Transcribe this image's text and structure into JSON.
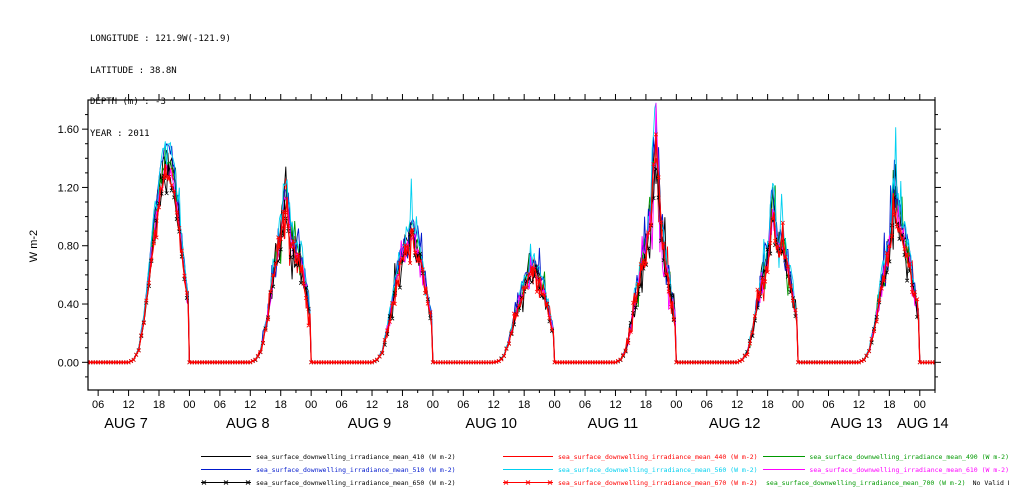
{
  "header": {
    "lines": [
      "LONGITUDE : 121.9W(-121.9)",
      "LATITUDE : 38.8N",
      "DEPTH (m) : -3",
      "YEAR : 2011"
    ]
  },
  "chart_data": {
    "type": "line",
    "title": "",
    "ylabel": "W m-2",
    "ylim": [
      -0.19,
      1.8
    ],
    "yticks": [
      "0.00",
      "0.40",
      "0.80",
      "1.20",
      "1.60"
    ],
    "ytick_values": [
      0.0,
      0.4,
      0.8,
      1.2,
      1.6
    ],
    "y_minor_step": 0.1,
    "x_start_hour": 4,
    "x_end_hour": 171,
    "x_major_step_h": 6,
    "x_minor_step_h": 3,
    "x_tick_label_cycle": [
      "00",
      "06",
      "12",
      "18"
    ],
    "day_labels": [
      "AUG 7",
      "AUG 8",
      "AUG 9",
      "AUG 10",
      "AUG 11",
      "AUG 12",
      "AUG 13",
      "AUG 14"
    ],
    "grid": false,
    "legend_position": "bottom",
    "profiles_note": "hourly envelope values (W m-2) at UTC hour offsets 12..28 from each day start; solar noon ~20:00 UTC at 121.9W",
    "profiles": [
      {
        "label": "AUG 7",
        "noise": 0.05,
        "hourly": [
          0,
          0.02,
          0.1,
          0.32,
          0.65,
          1.0,
          1.28,
          1.46,
          1.5,
          1.36,
          1.05,
          0.7,
          0.38,
          0.15,
          0.03,
          0,
          0
        ]
      },
      {
        "label": "AUG 8",
        "noise": 0.12,
        "hourly": [
          0,
          0.02,
          0.08,
          0.26,
          0.52,
          0.78,
          0.95,
          1.3,
          0.92,
          0.85,
          0.78,
          0.55,
          0.3,
          0.11,
          0.02,
          0,
          0
        ]
      },
      {
        "label": "AUG 9",
        "noise": 0.1,
        "hourly": [
          0,
          0.02,
          0.08,
          0.24,
          0.46,
          0.66,
          0.82,
          0.92,
          1.0,
          0.86,
          0.7,
          0.48,
          0.26,
          0.09,
          0.02,
          0,
          0
        ]
      },
      {
        "label": "AUG 10",
        "noise": 0.1,
        "hourly": [
          0,
          0.01,
          0.05,
          0.16,
          0.32,
          0.46,
          0.58,
          0.68,
          0.74,
          0.64,
          0.53,
          0.36,
          0.19,
          0.07,
          0.01,
          0,
          0
        ]
      },
      {
        "label": "AUG 11",
        "noise": 0.15,
        "hourly": [
          0,
          0.02,
          0.09,
          0.26,
          0.5,
          0.7,
          0.85,
          1.15,
          1.7,
          1.0,
          0.75,
          0.5,
          0.26,
          0.09,
          0.02,
          0,
          0
        ]
      },
      {
        "label": "AUG 12",
        "noise": 0.13,
        "hourly": [
          0,
          0.02,
          0.08,
          0.24,
          0.46,
          0.66,
          0.78,
          1.2,
          0.85,
          0.9,
          0.72,
          0.5,
          0.26,
          0.09,
          0.02,
          0,
          0
        ]
      },
      {
        "label": "AUG 13",
        "noise": 0.11,
        "hourly": [
          0,
          0.02,
          0.09,
          0.26,
          0.5,
          0.7,
          0.88,
          1.26,
          1.08,
          0.92,
          0.76,
          0.52,
          0.28,
          0.09,
          0.02,
          0,
          0
        ]
      }
    ],
    "series": [
      {
        "wavelength": "410",
        "name": "sea_surface_downwelling_irradiance_mean_410 (W m-2)",
        "color": "#000000",
        "relative_scale": 0.95,
        "marker": ""
      },
      {
        "wavelength": "440",
        "name": "sea_surface_downwelling_irradiance_mean_440 (W m-2)",
        "color": "#ff0000",
        "relative_scale": 0.9,
        "marker": ""
      },
      {
        "wavelength": "490",
        "name": "sea_surface_downwelling_irradiance_mean_490 (W m-2)",
        "color": "#009900",
        "relative_scale": 0.92,
        "marker": ""
      },
      {
        "wavelength": "510",
        "name": "sea_surface_downwelling_irradiance_mean_510 (W m-2)",
        "color": "#0018cc",
        "relative_scale": 0.98,
        "marker": ""
      },
      {
        "wavelength": "560",
        "name": "sea_surface_downwelling_irradiance_mean_560 (W m-2)",
        "color": "#00d0f0",
        "relative_scale": 1.0,
        "marker": ""
      },
      {
        "wavelength": "610",
        "name": "sea_surface_downwelling_irradiance_mean_610 (W m-2)",
        "color": "#ff00ff",
        "relative_scale": 0.88,
        "marker": ""
      },
      {
        "wavelength": "650",
        "name": "sea_surface_downwelling_irradiance_mean_650 (W m-2)",
        "color": "#000000",
        "relative_scale": 0.84,
        "marker": "x"
      },
      {
        "wavelength": "670",
        "name": "sea_surface_downwelling_irradiance_mean_670 (W m-2)",
        "color": "#ff0000",
        "relative_scale": 0.86,
        "marker": "x"
      },
      {
        "wavelength": "700",
        "name": "sea_surface_downwelling_irradiance_mean_700 (W m-2)",
        "color": "#009900",
        "relative_scale": 0,
        "marker": "x",
        "no_data": true,
        "note": "No Valid Data"
      }
    ]
  }
}
